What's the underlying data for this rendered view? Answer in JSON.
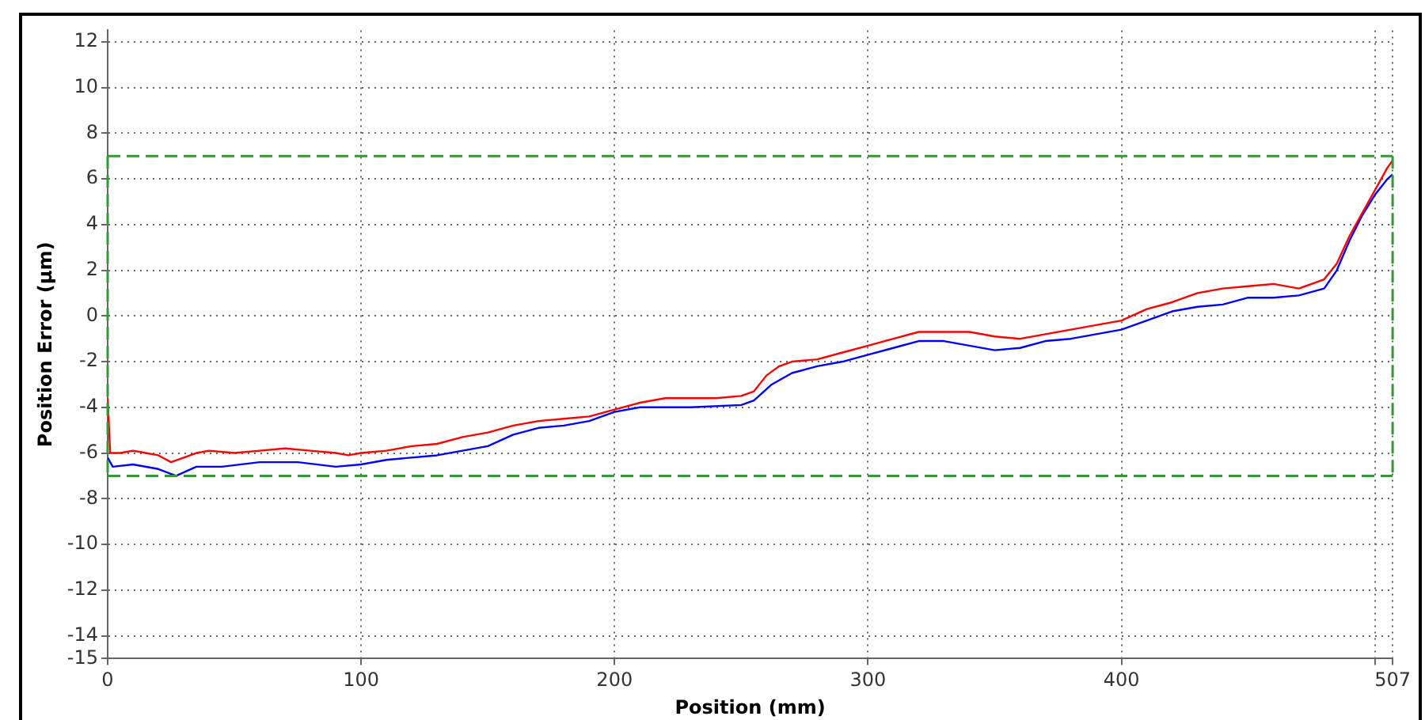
{
  "chart_data": {
    "type": "line",
    "xlabel": "Position (mm)",
    "ylabel": "Position Error (µm)",
    "xlim": [
      0,
      507
    ],
    "xticks": [
      0,
      100,
      200,
      300,
      400,
      {
        "value": 500,
        "label": null
      },
      507
    ],
    "ylim": [
      -15,
      12.5
    ],
    "yticks": [
      -15,
      -14,
      -12,
      -10,
      -8,
      -6,
      -4,
      -2,
      0,
      2,
      4,
      6,
      8,
      10,
      12
    ],
    "grid": true,
    "legend": false,
    "marker": "none",
    "line_style": "solid",
    "ref_lines": [
      {
        "axis": "y",
        "value": 7,
        "color": "#339933",
        "line_style": "dashed"
      },
      {
        "axis": "y",
        "value": -7,
        "color": "#339933",
        "line_style": "dashed"
      },
      {
        "axis": "x",
        "value": 0,
        "color": "#339933",
        "line_style": "dashed"
      },
      {
        "axis": "x",
        "value": 507,
        "color": "#339933",
        "line_style": "dashed"
      }
    ],
    "series": [
      {
        "color": "#ff0000",
        "x": [
          0,
          1,
          5,
          10,
          15,
          20,
          25,
          30,
          35,
          40,
          50,
          60,
          70,
          80,
          90,
          95,
          100,
          110,
          120,
          130,
          140,
          150,
          160,
          170,
          180,
          190,
          200,
          210,
          220,
          230,
          240,
          250,
          255,
          260,
          265,
          270,
          280,
          290,
          300,
          310,
          320,
          330,
          340,
          350,
          360,
          370,
          380,
          390,
          400,
          410,
          420,
          430,
          440,
          450,
          460,
          470,
          480,
          485,
          490,
          495,
          500,
          505,
          507
        ],
        "values": [
          -3.6,
          -6.0,
          -6.0,
          -5.9,
          -6.0,
          -6.1,
          -6.4,
          -6.2,
          -6.0,
          -5.9,
          -6.0,
          -5.9,
          -5.8,
          -5.9,
          -6.0,
          -6.1,
          -6.0,
          -5.9,
          -5.7,
          -5.6,
          -5.3,
          -5.1,
          -4.8,
          -4.6,
          -4.5,
          -4.4,
          -4.1,
          -3.8,
          -3.6,
          -3.6,
          -3.6,
          -3.5,
          -3.3,
          -2.6,
          -2.2,
          -2.0,
          -1.9,
          -1.6,
          -1.3,
          -1.0,
          -0.7,
          -0.7,
          -0.7,
          -0.9,
          -1.0,
          -0.8,
          -0.6,
          -0.4,
          -0.2,
          0.3,
          0.6,
          1.0,
          1.2,
          1.3,
          1.4,
          1.2,
          1.6,
          2.3,
          3.5,
          4.5,
          5.5,
          6.5,
          6.8
        ]
      },
      {
        "color": "#0000ff",
        "x": [
          0,
          2,
          10,
          20,
          27,
          35,
          45,
          60,
          75,
          90,
          100,
          110,
          130,
          150,
          160,
          170,
          180,
          190,
          200,
          210,
          230,
          250,
          255,
          262,
          270,
          280,
          290,
          300,
          310,
          320,
          330,
          340,
          350,
          360,
          370,
          380,
          390,
          400,
          410,
          420,
          430,
          440,
          450,
          460,
          470,
          480,
          485,
          490,
          495,
          500,
          505,
          507
        ],
        "values": [
          -6.2,
          -6.6,
          -6.5,
          -6.7,
          -7.0,
          -6.6,
          -6.6,
          -6.4,
          -6.4,
          -6.6,
          -6.5,
          -6.3,
          -6.1,
          -5.7,
          -5.2,
          -4.9,
          -4.8,
          -4.6,
          -4.2,
          -4.0,
          -4.0,
          -3.9,
          -3.7,
          -3.0,
          -2.5,
          -2.2,
          -2.0,
          -1.7,
          -1.4,
          -1.1,
          -1.1,
          -1.3,
          -1.5,
          -1.4,
          -1.1,
          -1.0,
          -0.8,
          -0.6,
          -0.2,
          0.2,
          0.4,
          0.5,
          0.8,
          0.8,
          0.9,
          1.2,
          2.0,
          3.3,
          4.4,
          5.3,
          6.0,
          6.2
        ]
      }
    ]
  }
}
